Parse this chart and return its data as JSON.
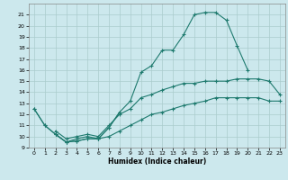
{
  "xlabel": "Humidex (Indice chaleur)",
  "bg_color": "#cce8ed",
  "grid_color": "#aacccc",
  "line_color": "#1e7a6e",
  "xlim": [
    -0.5,
    23.5
  ],
  "ylim": [
    9,
    22
  ],
  "xticks": [
    0,
    1,
    2,
    3,
    4,
    5,
    6,
    7,
    8,
    9,
    10,
    11,
    12,
    13,
    14,
    15,
    16,
    17,
    18,
    19,
    20,
    21,
    22,
    23
  ],
  "yticks": [
    9,
    10,
    11,
    12,
    13,
    14,
    15,
    16,
    17,
    18,
    19,
    20,
    21
  ],
  "curve_upper_x": [
    0,
    1,
    2,
    3,
    4,
    5,
    6,
    7,
    8,
    9,
    10,
    11,
    12,
    13,
    14,
    15,
    16,
    17,
    18,
    19,
    20,
    21,
    22,
    23
  ],
  "curve_upper_y": [
    12.5,
    11.0,
    10.2,
    9.5,
    9.6,
    9.8,
    9.8,
    10.8,
    12.2,
    13.2,
    15.8,
    16.4,
    17.8,
    17.8,
    19.2,
    21.0,
    21.2,
    21.2,
    20.5,
    18.2,
    16.0,
    null,
    null,
    null
  ],
  "curve_mid_x": [
    2,
    3,
    4,
    5,
    6,
    7,
    8,
    9,
    10,
    11,
    12,
    13,
    14,
    15,
    16,
    17,
    18,
    19,
    20,
    21,
    22,
    23
  ],
  "curve_mid_y": [
    10.5,
    9.8,
    10.0,
    10.2,
    10.0,
    11.0,
    12.0,
    12.5,
    13.5,
    13.8,
    14.2,
    14.5,
    14.8,
    14.8,
    15.0,
    15.0,
    15.0,
    15.2,
    15.2,
    15.2,
    15.0,
    13.8
  ],
  "curve_low_x": [
    2,
    3,
    4,
    5,
    6,
    7,
    8,
    9,
    10,
    11,
    12,
    13,
    14,
    15,
    16,
    17,
    18,
    19,
    20,
    21,
    22,
    23
  ],
  "curve_low_y": [
    10.2,
    9.5,
    9.8,
    10.0,
    9.8,
    10.0,
    10.5,
    11.0,
    11.5,
    12.0,
    12.2,
    12.5,
    12.8,
    13.0,
    13.2,
    13.5,
    13.5,
    13.5,
    13.5,
    13.5,
    13.2,
    13.2
  ],
  "curve_left_x": [
    0,
    1,
    2,
    3,
    4,
    5,
    6,
    7,
    8
  ],
  "curve_left_y": [
    12.5,
    11.0,
    10.2,
    9.5,
    9.6,
    9.8,
    9.8,
    10.8,
    12.2
  ]
}
